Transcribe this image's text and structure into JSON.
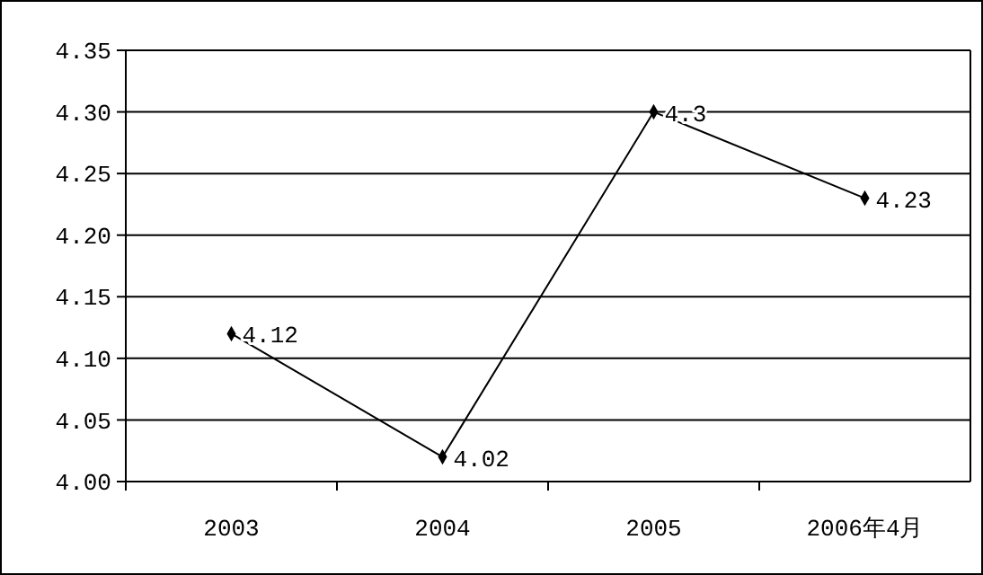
{
  "chart_data": {
    "type": "line",
    "categories": [
      "2003",
      "2004",
      "2005",
      "2006年4月"
    ],
    "series": [
      {
        "color": "#000000",
        "values": [
          4.12,
          4.02,
          4.3,
          4.23
        ]
      }
    ],
    "ylim": [
      4.0,
      4.35
    ],
    "yticks": [
      {
        "value": 4.0,
        "label": "4.00"
      },
      {
        "value": 4.05,
        "label": "4.05"
      },
      {
        "value": 4.1,
        "label": "4.10"
      },
      {
        "value": 4.15,
        "label": "4.15"
      },
      {
        "value": 4.2,
        "label": "4.20"
      },
      {
        "value": 4.25,
        "label": "4.25"
      },
      {
        "value": 4.3,
        "label": "4.30"
      },
      {
        "value": 4.35,
        "label": "4.35"
      }
    ],
    "grid": "y",
    "marker": "diamond",
    "data_labels": true,
    "line_style": "solid"
  }
}
